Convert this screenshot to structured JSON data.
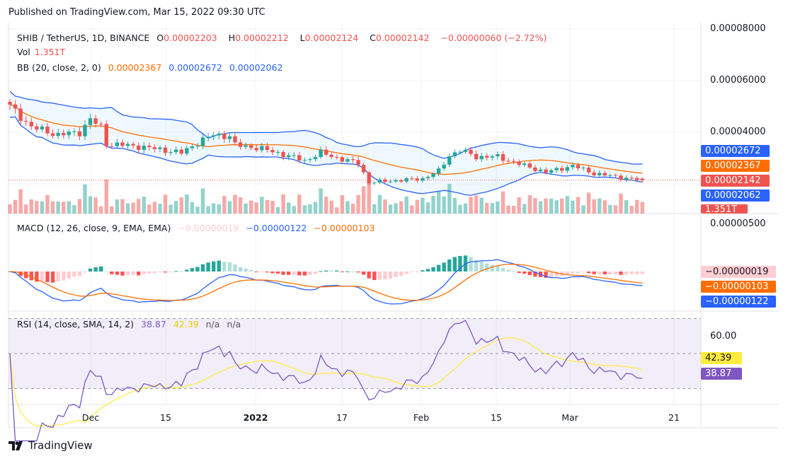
{
  "header": {
    "published": "Published on TradingView.com, Mar 15, 2022 09:30 UTC"
  },
  "legend": {
    "symbol": "SHIB / TetherUS, 1D, BINANCE",
    "o_label": "O",
    "o": "0.00002203",
    "h_label": "H",
    "h": "0.00002212",
    "l_label": "L",
    "l": "0.00002124",
    "c_label": "C",
    "c": "0.00002142",
    "change": "−0.00000060 (−2.72%)",
    "vol_label": "Vol",
    "vol": "1.351T",
    "bb_label": "BB (20, close, 2, 0)",
    "bb_basis": "0.00002367",
    "bb_upper": "0.00002672",
    "bb_lower": "0.00002062",
    "macd_label": "MACD (12, 26, close, 9, EMA, EMA)",
    "macd_hist": "−0.00000019",
    "macd_line": "−0.00000122",
    "macd_signal": "−0.00000103",
    "rsi_label": "RSI (14, close, SMA, 14, 2)",
    "rsi": "38.87",
    "rsi_ma": "42.39",
    "rsi_na1": "n/a",
    "rsi_na2": "n/a"
  },
  "price_axis": {
    "ticks": [
      "0.00008000",
      "0.00006000",
      "0.00004000"
    ],
    "tags": {
      "upper": "0.00002672",
      "basis": "0.00002367",
      "close": "0.00002142",
      "lower": "0.00002062",
      "vol": "1.351T"
    }
  },
  "macd_axis": {
    "ticks": [
      "0.00000500"
    ],
    "tags": {
      "hist": "−0.00000019",
      "signal": "−0.00000103",
      "macd": "−0.00000122"
    }
  },
  "rsi_axis": {
    "ticks": [
      "60.00"
    ],
    "tags": {
      "ma": "42.39",
      "rsi": "38.87"
    }
  },
  "time_axis": [
    "Dec",
    "15",
    "2022",
    "17",
    "Feb",
    "15",
    "Mar",
    "21"
  ],
  "footer": {
    "brand": "TradingView"
  },
  "colors": {
    "up": "#26a69a",
    "down": "#ef5350",
    "bb_basis": "#ff6d00",
    "bb_band": "#2962ff",
    "macd": "#2962ff",
    "signal": "#ff6d00",
    "rsi": "#7e57c2",
    "rsi_ma": "#ffeb3b"
  },
  "chart_data": {
    "type": "candlestick",
    "title": "SHIB / TetherUS, 1D, BINANCE",
    "ylim": [
      1.5e-05,
      8e-05
    ],
    "start_date": "2021-11-16",
    "close_keypoints": [
      [
        "2021-11-16",
        5e-05
      ],
      [
        "2021-11-20",
        4.2e-05
      ],
      [
        "2021-11-25",
        3.9e-05
      ],
      [
        "2021-11-29",
        4e-05
      ],
      [
        "2021-12-01",
        4.5e-05
      ],
      [
        "2021-12-03",
        4.2e-05
      ],
      [
        "2021-12-04",
        3.55e-05
      ],
      [
        "2021-12-10",
        3.45e-05
      ],
      [
        "2021-12-15",
        3.3e-05
      ],
      [
        "2021-12-18",
        3.2e-05
      ],
      [
        "2021-12-21",
        3.6e-05
      ],
      [
        "2021-12-24",
        3.9e-05
      ],
      [
        "2021-12-27",
        3.85e-05
      ],
      [
        "2021-12-28",
        3.5e-05
      ],
      [
        "2022-01-01",
        3.4e-05
      ],
      [
        "2022-01-05",
        3.2e-05
      ],
      [
        "2022-01-10",
        2.9e-05
      ],
      [
        "2022-01-13",
        3.2e-05
      ],
      [
        "2022-01-17",
        2.95e-05
      ],
      [
        "2022-01-20",
        2.8e-05
      ],
      [
        "2022-01-22",
        2.05e-05
      ],
      [
        "2022-01-25",
        2.1e-05
      ],
      [
        "2022-02-01",
        2.2e-05
      ],
      [
        "2022-02-04",
        2.5e-05
      ],
      [
        "2022-02-06",
        3.1e-05
      ],
      [
        "2022-02-08",
        3.3e-05
      ],
      [
        "2022-02-11",
        3.05e-05
      ],
      [
        "2022-02-15",
        3.05e-05
      ],
      [
        "2022-02-20",
        2.7e-05
      ],
      [
        "2022-02-24",
        2.45e-05
      ],
      [
        "2022-03-01",
        2.7e-05
      ],
      [
        "2022-03-05",
        2.4e-05
      ],
      [
        "2022-03-10",
        2.25e-05
      ],
      [
        "2022-03-14",
        2.14e-05
      ]
    ],
    "last_candle": {
      "open": 2.203e-05,
      "high": 2.212e-05,
      "low": 2.124e-05,
      "close": 2.142e-05,
      "volume": "1.351T"
    },
    "indicators": {
      "bb": {
        "length": 20,
        "mult": 2
      },
      "macd": {
        "fast": 12,
        "slow": 26,
        "signal": 9
      },
      "rsi": {
        "length": 14,
        "ma": 14,
        "bands": [
          70,
          50,
          30
        ]
      }
    },
    "x_ticks": [
      "Dec",
      "15",
      "2022",
      "17",
      "Feb",
      "15",
      "Mar",
      "21"
    ]
  }
}
